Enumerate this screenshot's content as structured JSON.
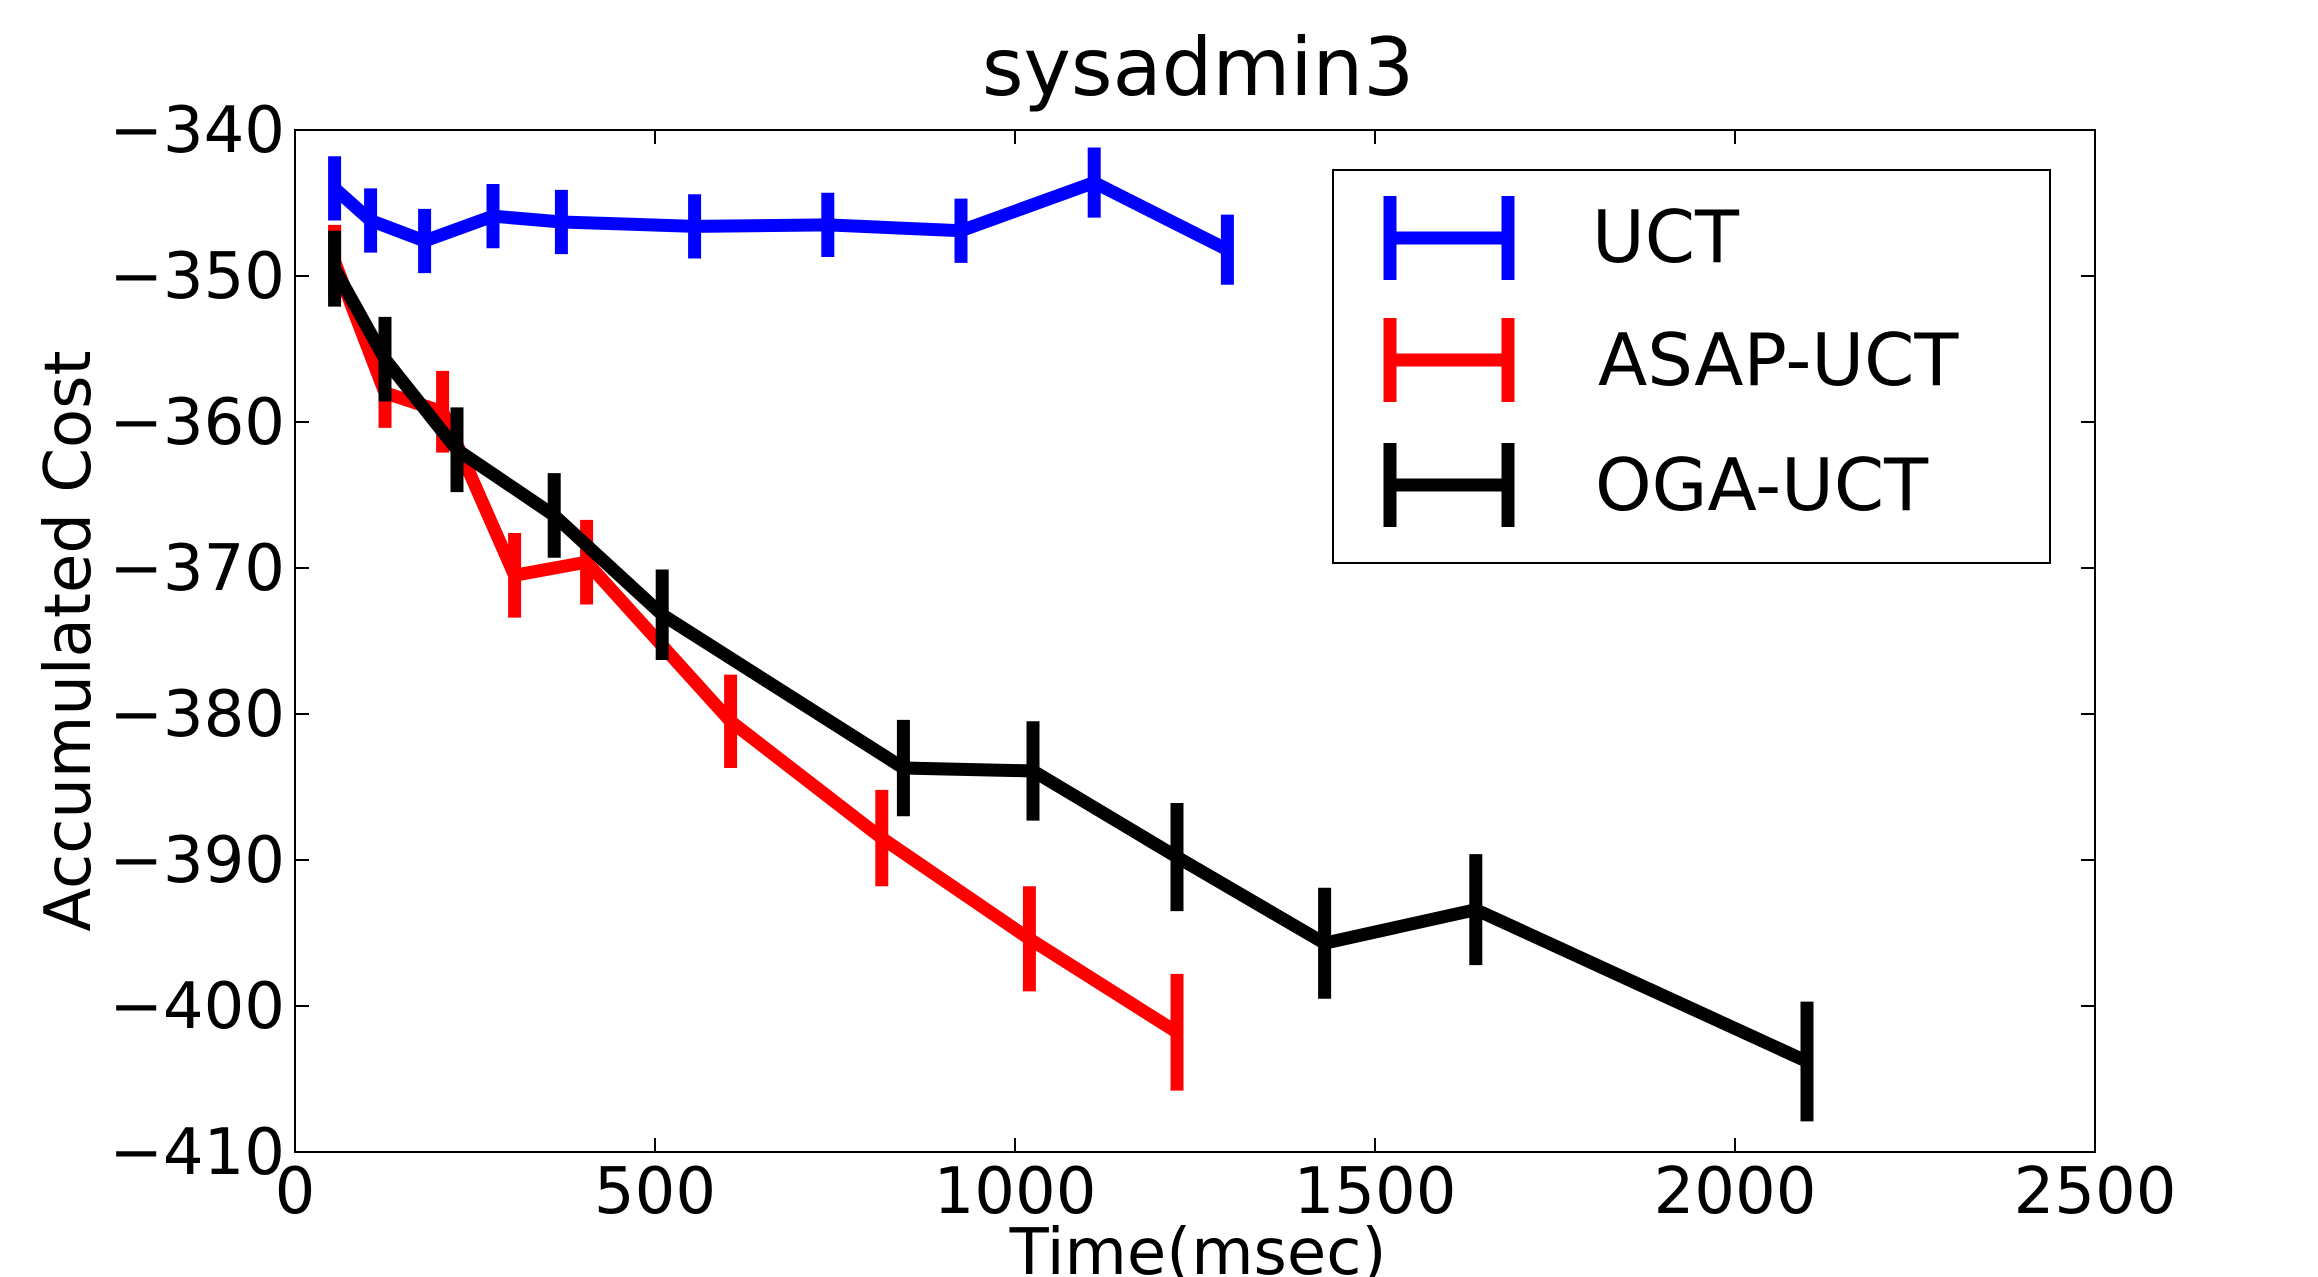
{
  "chart_data": {
    "type": "line",
    "title": "sysadmin3",
    "xlabel": "Time(msec)",
    "ylabel": "Accumulated Cost",
    "xlim": [
      0,
      2500
    ],
    "ylim": [
      -410,
      -340
    ],
    "xticks": [
      0,
      500,
      1000,
      1500,
      2000,
      2500
    ],
    "xtick_labels": [
      "0",
      "500",
      "1000",
      "1500",
      "2000",
      "2500"
    ],
    "yticks": [
      -340,
      -350,
      -360,
      -370,
      -380,
      -390,
      -400,
      -410
    ],
    "ytick_labels": [
      "−340",
      "−350",
      "−360",
      "−370",
      "−380",
      "−390",
      "−400",
      "−410"
    ],
    "grid": false,
    "legend_position": "top-right",
    "series": [
      {
        "name": "UCT",
        "color": "#0000ff",
        "points": [
          {
            "x": 55,
            "y": -344.0,
            "err": 2.2
          },
          {
            "x": 105,
            "y": -346.2,
            "err": 2.2
          },
          {
            "x": 180,
            "y": -347.6,
            "err": 2.2
          },
          {
            "x": 275,
            "y": -345.9,
            "err": 2.2
          },
          {
            "x": 370,
            "y": -346.3,
            "err": 2.2
          },
          {
            "x": 555,
            "y": -346.6,
            "err": 2.2
          },
          {
            "x": 740,
            "y": -346.5,
            "err": 2.2
          },
          {
            "x": 925,
            "y": -346.9,
            "err": 2.2
          },
          {
            "x": 1110,
            "y": -343.6,
            "err": 2.4
          },
          {
            "x": 1295,
            "y": -348.2,
            "err": 2.4
          }
        ]
      },
      {
        "name": "ASAP-UCT",
        "color": "#ff0000",
        "points": [
          {
            "x": 55,
            "y": -349.0,
            "err": 2.5
          },
          {
            "x": 125,
            "y": -358.0,
            "err": 2.4
          },
          {
            "x": 205,
            "y": -359.3,
            "err": 2.8
          },
          {
            "x": 305,
            "y": -370.5,
            "err": 2.9
          },
          {
            "x": 405,
            "y": -369.6,
            "err": 2.9
          },
          {
            "x": 605,
            "y": -380.5,
            "err": 3.2
          },
          {
            "x": 815,
            "y": -388.5,
            "err": 3.3
          },
          {
            "x": 1020,
            "y": -395.4,
            "err": 3.6
          },
          {
            "x": 1225,
            "y": -401.8,
            "err": 4.0
          }
        ]
      },
      {
        "name": "OGA-UCT",
        "color": "#000000",
        "points": [
          {
            "x": 55,
            "y": -349.5,
            "err": 2.6
          },
          {
            "x": 125,
            "y": -355.7,
            "err": 2.9
          },
          {
            "x": 225,
            "y": -361.9,
            "err": 2.9
          },
          {
            "x": 360,
            "y": -366.4,
            "err": 2.9
          },
          {
            "x": 510,
            "y": -373.2,
            "err": 3.1
          },
          {
            "x": 845,
            "y": -383.7,
            "err": 3.3
          },
          {
            "x": 1025,
            "y": -383.9,
            "err": 3.4
          },
          {
            "x": 1225,
            "y": -389.8,
            "err": 3.7
          },
          {
            "x": 1430,
            "y": -395.7,
            "err": 3.8
          },
          {
            "x": 1640,
            "y": -393.4,
            "err": 3.8
          },
          {
            "x": 2100,
            "y": -403.8,
            "err": 4.1
          }
        ]
      }
    ]
  }
}
